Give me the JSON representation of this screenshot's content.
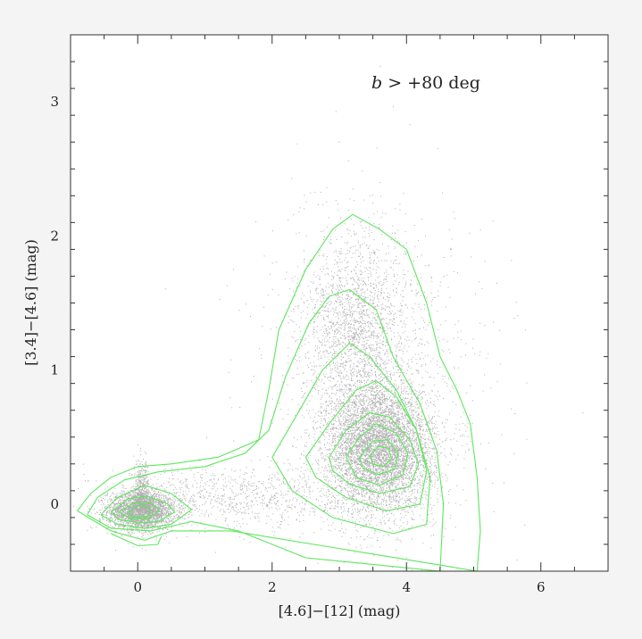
{
  "chart_data": {
    "type": "scatter",
    "title": "",
    "xlabel": "[4.6]−[12] (mag)",
    "ylabel": "[3.4]−[4.6] (mag)",
    "xlim": [
      -1.0,
      7.0
    ],
    "ylim": [
      -0.5,
      3.5
    ],
    "x_ticks": [
      0,
      2,
      4,
      6
    ],
    "y_ticks": [
      0,
      1,
      2,
      3
    ],
    "x_tick_labels": [
      "0",
      "2",
      "4",
      "6"
    ],
    "y_tick_labels": [
      "0",
      "1",
      "2",
      "3"
    ],
    "annotation": {
      "var": "b",
      "rest": " > +80 deg"
    },
    "grid": false,
    "point_color": "#6e6e6e",
    "contour_color": "#5ee65e",
    "point_populations": [
      {
        "cx": 0.05,
        "cy": -0.05,
        "sx": 0.25,
        "sy": 0.07,
        "count": 3000
      },
      {
        "cx": 0.05,
        "cy": 0.08,
        "sx": 0.06,
        "sy": 0.12,
        "count": 500
      },
      {
        "cx": 3.6,
        "cy": 0.42,
        "sx": 0.4,
        "sy": 0.24,
        "count": 6000
      },
      {
        "cx": 3.25,
        "cy": 1.3,
        "sx": 0.4,
        "sy": 0.35,
        "count": 2000
      },
      {
        "cx": 1.5,
        "cy": 0.05,
        "sx": 0.9,
        "sy": 0.12,
        "count": 900
      },
      {
        "cx": 3.6,
        "cy": 0.9,
        "sx": 0.9,
        "sy": 0.7,
        "count": 900
      }
    ],
    "contours": [
      {
        "level": 1,
        "points": [
          [
            -0.9,
            -0.05
          ],
          [
            -0.7,
            0.08
          ],
          [
            -0.4,
            0.2
          ],
          [
            0,
            0.28
          ],
          [
            0.5,
            0.3
          ],
          [
            1.2,
            0.35
          ],
          [
            1.8,
            0.48
          ],
          [
            1.95,
            0.85
          ],
          [
            2.1,
            1.3
          ],
          [
            2.5,
            1.75
          ],
          [
            2.9,
            2.05
          ],
          [
            3.2,
            2.16
          ],
          [
            3.6,
            2.05
          ],
          [
            4.0,
            1.9
          ],
          [
            4.3,
            1.5
          ],
          [
            4.5,
            1.1
          ],
          [
            4.75,
            0.85
          ],
          [
            4.95,
            0.6
          ],
          [
            5.05,
            0.2
          ],
          [
            5.1,
            -0.2
          ],
          [
            5.05,
            -0.5
          ],
          [
            1.4,
            -0.2
          ],
          [
            0.5,
            -0.2
          ],
          [
            0.1,
            -0.27
          ],
          [
            -0.4,
            -0.2
          ],
          [
            -0.9,
            -0.05
          ]
        ]
      },
      {
        "level": 2,
        "points": [
          [
            -0.75,
            -0.08
          ],
          [
            -0.6,
            0.05
          ],
          [
            -0.2,
            0.18
          ],
          [
            0.3,
            0.24
          ],
          [
            1.0,
            0.28
          ],
          [
            1.6,
            0.38
          ],
          [
            1.95,
            0.55
          ],
          [
            2.2,
            0.95
          ],
          [
            2.55,
            1.35
          ],
          [
            2.85,
            1.55
          ],
          [
            3.15,
            1.6
          ],
          [
            3.55,
            1.45
          ],
          [
            3.8,
            1.1
          ],
          [
            4.2,
            0.75
          ],
          [
            4.45,
            0.4
          ],
          [
            4.55,
            0.0
          ],
          [
            4.5,
            -0.5
          ],
          [
            2.5,
            -0.4
          ],
          [
            1.5,
            -0.2
          ],
          [
            0.8,
            -0.13
          ],
          [
            0.2,
            -0.2
          ],
          [
            -0.4,
            -0.18
          ],
          [
            -0.75,
            -0.08
          ]
        ]
      },
      {
        "level": 3,
        "points": [
          [
            2.0,
            0.35
          ],
          [
            2.35,
            0.65
          ],
          [
            2.75,
            1.0
          ],
          [
            3.15,
            1.2
          ],
          [
            3.45,
            1.1
          ],
          [
            3.85,
            0.85
          ],
          [
            4.15,
            0.55
          ],
          [
            4.35,
            0.2
          ],
          [
            4.3,
            -0.15
          ],
          [
            3.8,
            -0.22
          ],
          [
            2.9,
            -0.1
          ],
          [
            2.3,
            0.1
          ],
          [
            2.0,
            0.35
          ]
        ]
      },
      {
        "level": 4,
        "points": [
          [
            2.5,
            0.35
          ],
          [
            2.85,
            0.6
          ],
          [
            3.25,
            0.85
          ],
          [
            3.55,
            0.92
          ],
          [
            3.85,
            0.8
          ],
          [
            4.15,
            0.55
          ],
          [
            4.3,
            0.25
          ],
          [
            4.2,
            0.0
          ],
          [
            3.7,
            -0.05
          ],
          [
            3.1,
            0.05
          ],
          [
            2.65,
            0.2
          ],
          [
            2.5,
            0.35
          ]
        ]
      },
      {
        "level": 5,
        "points": [
          [
            2.85,
            0.35
          ],
          [
            3.1,
            0.55
          ],
          [
            3.45,
            0.68
          ],
          [
            3.75,
            0.65
          ],
          [
            4.05,
            0.48
          ],
          [
            4.18,
            0.3
          ],
          [
            4.05,
            0.13
          ],
          [
            3.6,
            0.08
          ],
          [
            3.15,
            0.15
          ],
          [
            2.9,
            0.25
          ],
          [
            2.85,
            0.35
          ]
        ]
      },
      {
        "level": 6,
        "points": [
          [
            3.1,
            0.35
          ],
          [
            3.3,
            0.5
          ],
          [
            3.55,
            0.6
          ],
          [
            3.85,
            0.53
          ],
          [
            4.02,
            0.38
          ],
          [
            3.95,
            0.22
          ],
          [
            3.6,
            0.14
          ],
          [
            3.25,
            0.2
          ],
          [
            3.1,
            0.35
          ]
        ]
      },
      {
        "level": 7,
        "points": [
          [
            3.3,
            0.35
          ],
          [
            3.5,
            0.47
          ],
          [
            3.72,
            0.48
          ],
          [
            3.88,
            0.38
          ],
          [
            3.82,
            0.26
          ],
          [
            3.58,
            0.22
          ],
          [
            3.35,
            0.27
          ],
          [
            3.3,
            0.35
          ]
        ]
      },
      {
        "level": 8,
        "points": [
          [
            3.45,
            0.36
          ],
          [
            3.58,
            0.43
          ],
          [
            3.72,
            0.42
          ],
          [
            3.78,
            0.34
          ],
          [
            3.65,
            0.28
          ],
          [
            3.5,
            0.3
          ],
          [
            3.45,
            0.36
          ]
        ]
      },
      {
        "level": 2,
        "points": [
          [
            -0.55,
            -0.08
          ],
          [
            -0.3,
            0.05
          ],
          [
            0.1,
            0.14
          ],
          [
            0.5,
            0.08
          ],
          [
            0.8,
            -0.04
          ],
          [
            0.5,
            -0.15
          ],
          [
            0.1,
            -0.18
          ],
          [
            -0.3,
            -0.15
          ],
          [
            -0.55,
            -0.08
          ]
        ]
      },
      {
        "level": 3,
        "points": [
          [
            -0.4,
            -0.06
          ],
          [
            -0.15,
            0.04
          ],
          [
            0.15,
            0.06
          ],
          [
            0.45,
            0.0
          ],
          [
            0.55,
            -0.06
          ],
          [
            0.3,
            -0.13
          ],
          [
            0.0,
            -0.14
          ],
          [
            -0.3,
            -0.11
          ],
          [
            -0.4,
            -0.06
          ]
        ]
      },
      {
        "level": 4,
        "points": [
          [
            -0.28,
            -0.06
          ],
          [
            -0.05,
            0.01
          ],
          [
            0.2,
            0.01
          ],
          [
            0.32,
            -0.05
          ],
          [
            0.15,
            -0.11
          ],
          [
            -0.1,
            -0.11
          ],
          [
            -0.28,
            -0.06
          ]
        ]
      },
      {
        "level": 5,
        "points": [
          [
            -0.15,
            -0.06
          ],
          [
            0.02,
            -0.01
          ],
          [
            0.18,
            -0.03
          ],
          [
            0.15,
            -0.09
          ],
          [
            -0.05,
            -0.1
          ],
          [
            -0.15,
            -0.06
          ]
        ]
      },
      {
        "level": 1,
        "points": [
          [
            -0.4,
            -0.22
          ],
          [
            0.0,
            -0.31
          ],
          [
            0.3,
            -0.3
          ],
          [
            0.35,
            -0.24
          ]
        ]
      }
    ]
  }
}
